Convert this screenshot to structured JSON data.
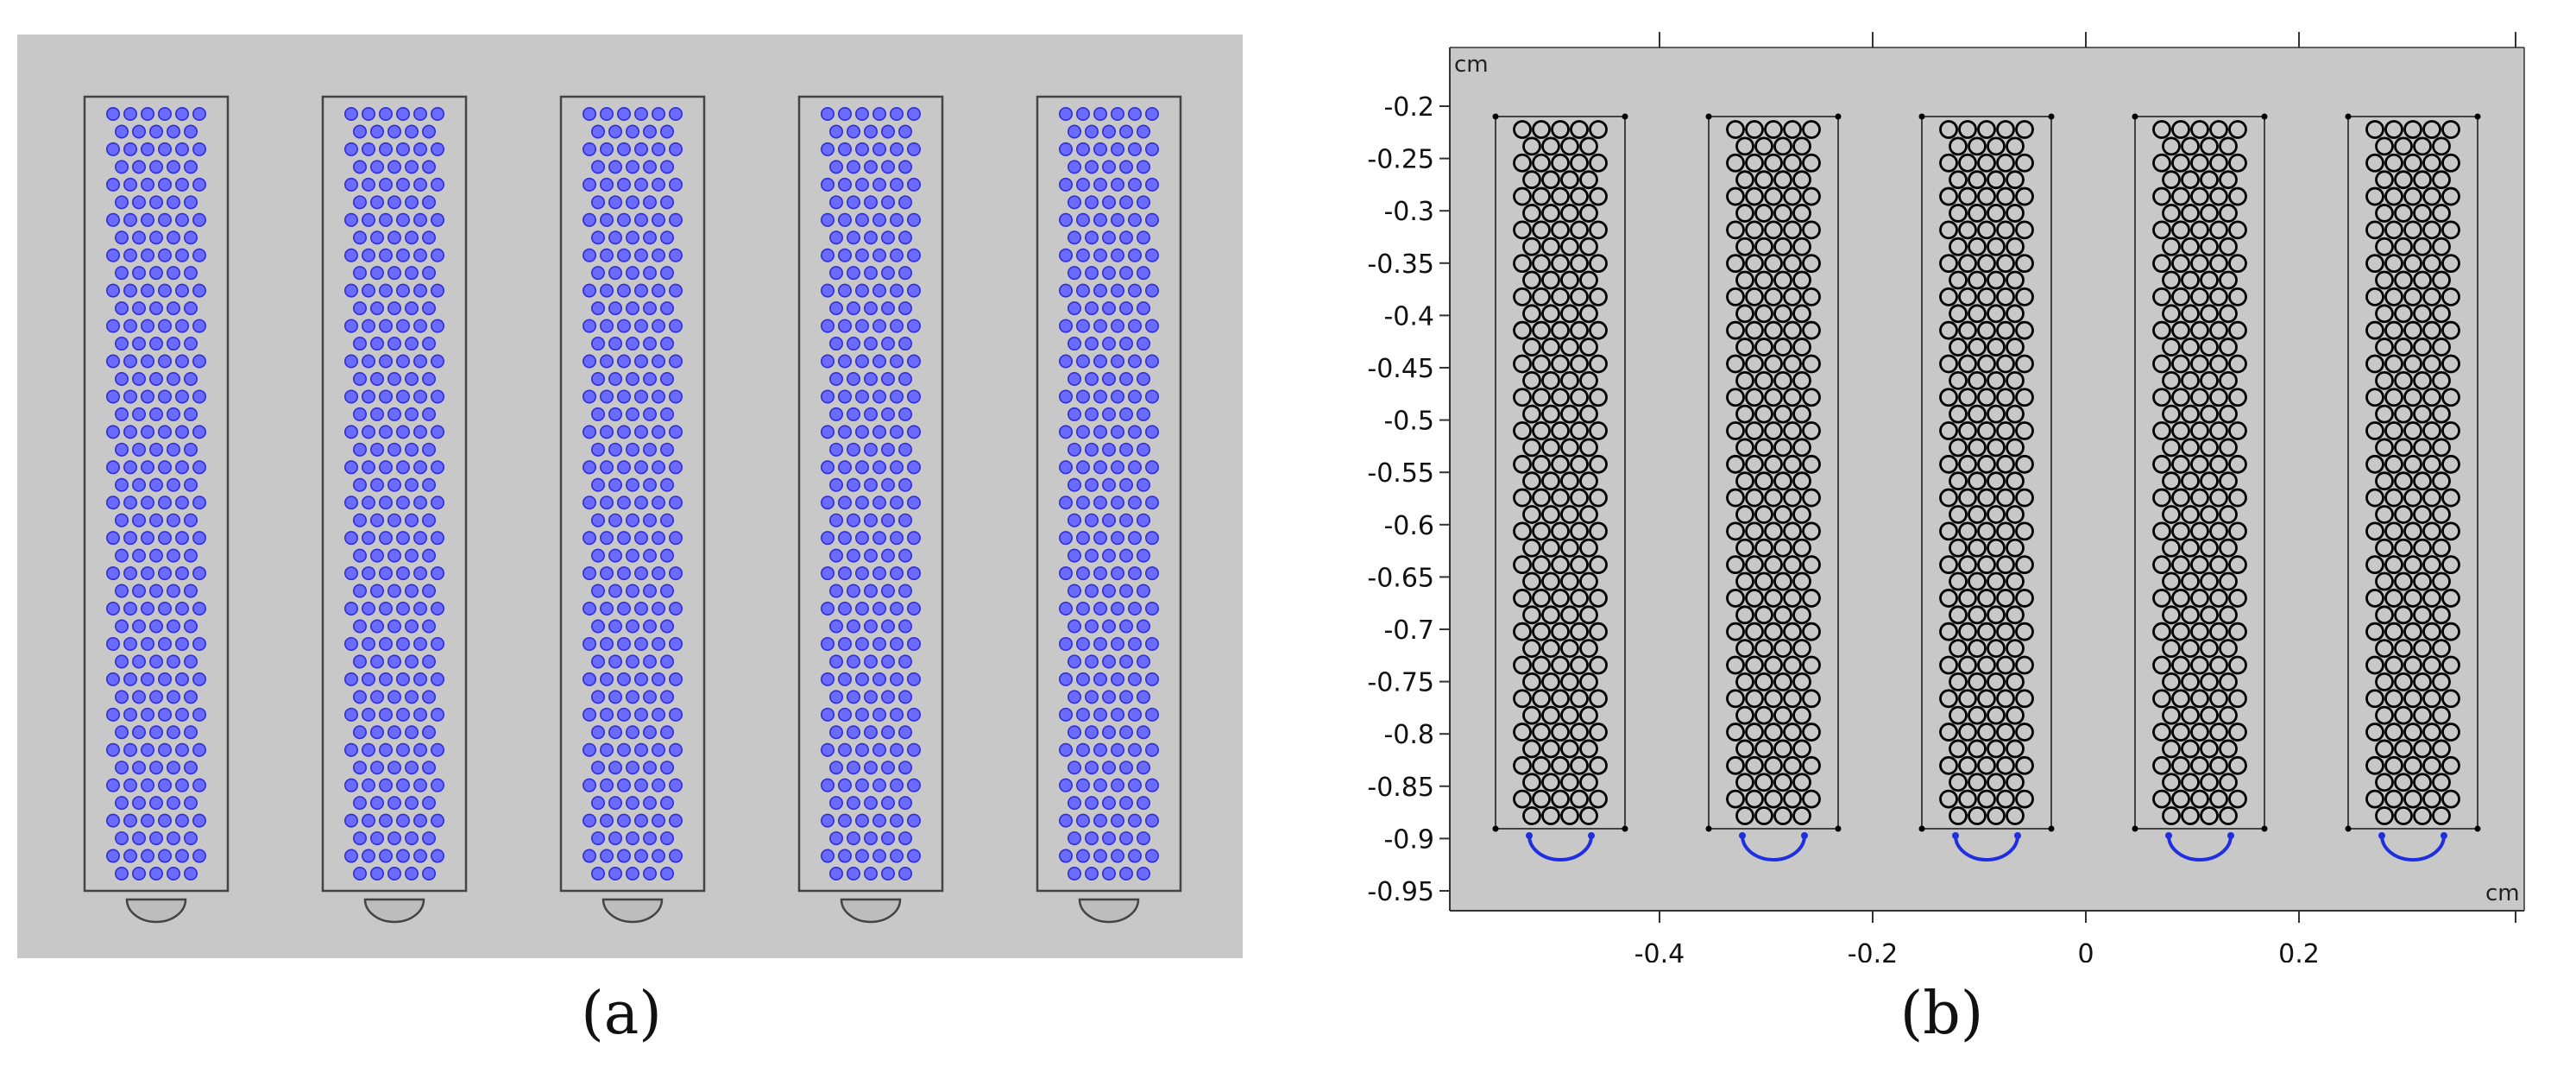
{
  "panel_a": {
    "caption": "(a)",
    "background_color": "#c8c8c8",
    "channel_count": 5,
    "particle_color": "#6b6bff",
    "particle_edge_color": "#2e2ed8"
  },
  "panel_b": {
    "caption": "(b)",
    "background_color": "#c8c8c8",
    "structure_color": "#000000",
    "arc_color": "#1f2fe0",
    "unit_y": "cm",
    "unit_x": "cm",
    "y_ticks": [
      "-0.2",
      "-0.25",
      "-0.3",
      "-0.35",
      "-0.4",
      "-0.45",
      "-0.5",
      "-0.55",
      "-0.6",
      "-0.65",
      "-0.7",
      "-0.75",
      "-0.8",
      "-0.85",
      "-0.9",
      "-0.95"
    ],
    "x_ticks": [
      "-0.4",
      "-0.2",
      "0",
      "0.2"
    ],
    "channel_count": 5
  }
}
